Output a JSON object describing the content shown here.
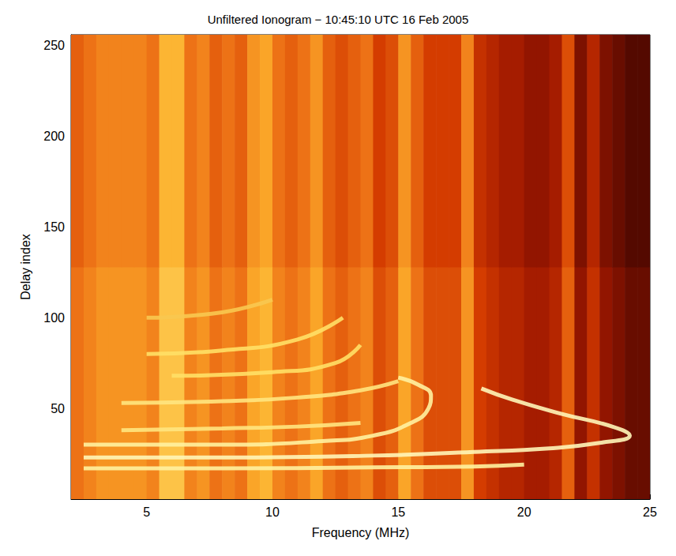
{
  "chart_data": {
    "type": "heatmap",
    "title": "Unfiltered Ionogram − 10:45:10 UTC 16 Feb 2005",
    "x_label": "Frequency (MHz)",
    "y_label": "Delay index",
    "xlim": [
      2,
      25
    ],
    "xticks": [
      5,
      10,
      15,
      20,
      25
    ],
    "ylim": [
      0,
      256
    ],
    "yticks": [
      50,
      100,
      150,
      200,
      250
    ],
    "grid": false,
    "cells": {
      "x_edges": [
        2,
        2.5,
        3,
        3.5,
        4,
        4.5,
        5,
        5.5,
        6,
        6.5,
        7,
        7.5,
        8,
        8.5,
        9,
        9.5,
        10,
        10.5,
        11,
        11.5,
        12,
        12.5,
        13,
        13.5,
        14,
        14.5,
        15,
        15.5,
        16,
        16.5,
        17,
        17.5,
        18,
        18.5,
        19,
        19.5,
        20,
        20.5,
        21,
        21.5,
        22,
        22.5,
        23,
        23.5,
        24,
        24.5,
        25
      ],
      "y_edges": [
        0,
        128,
        256
      ],
      "values": [
        [
          6.5,
          7,
          7.5,
          7.5,
          7.5,
          7.5,
          7,
          9,
          9,
          7,
          7.5,
          6.5,
          7,
          6.5,
          8,
          8.5,
          7,
          6.5,
          7,
          8,
          6.5,
          6,
          6.5,
          7,
          5.5,
          6,
          8,
          6.5,
          5.5,
          5.5,
          5.5,
          7.5,
          5,
          4.5,
          4,
          4,
          3.5,
          3.5,
          4,
          6,
          3,
          4.5,
          3,
          2.5,
          2,
          2
        ],
        [
          6,
          6.5,
          7,
          7,
          7,
          7,
          6.5,
          8.5,
          8.5,
          6.5,
          7,
          6,
          6.5,
          6,
          7.5,
          8,
          6.5,
          6,
          6.5,
          7.5,
          6,
          5.5,
          6,
          6.5,
          5,
          5.5,
          7.5,
          6,
          5,
          5,
          5,
          7,
          4.5,
          4,
          3.5,
          3.5,
          3,
          3,
          3.5,
          5.5,
          2.5,
          4,
          2.5,
          2,
          1.5,
          1.5
        ]
      ],
      "zlim": [
        0,
        10
      ]
    },
    "traces": [
      {
        "type": "line",
        "color": "#fff2a0",
        "points": [
          [
            2.5,
            17
          ],
          [
            8,
            17
          ],
          [
            14,
            17.5
          ],
          [
            18,
            18
          ],
          [
            20,
            19
          ]
        ]
      },
      {
        "type": "line",
        "color": "#fff6b8",
        "points": [
          [
            2.5,
            23
          ],
          [
            8,
            23
          ],
          [
            14,
            24
          ],
          [
            18,
            26
          ],
          [
            21,
            28
          ],
          [
            23,
            31
          ],
          [
            24.2,
            35
          ],
          [
            23.5,
            40
          ],
          [
            21.5,
            47
          ],
          [
            19.5,
            55
          ],
          [
            18.3,
            61
          ]
        ]
      },
      {
        "type": "line",
        "color": "#fff2a0",
        "points": [
          [
            2.5,
            30
          ],
          [
            8,
            30
          ],
          [
            12,
            32
          ],
          [
            14,
            35
          ],
          [
            15.5,
            42
          ],
          [
            16.2,
            50
          ],
          [
            16.3,
            57
          ],
          [
            15.8,
            63
          ],
          [
            15,
            67
          ]
        ]
      },
      {
        "type": "line",
        "color": "#ffe680",
        "points": [
          [
            4,
            38
          ],
          [
            8,
            39
          ],
          [
            11,
            40
          ],
          [
            13.5,
            42
          ]
        ]
      },
      {
        "type": "line",
        "color": "#ffe680",
        "points": [
          [
            4,
            53
          ],
          [
            8,
            54
          ],
          [
            11,
            56
          ],
          [
            13.5,
            60
          ],
          [
            15,
            65
          ]
        ]
      },
      {
        "type": "line",
        "color": "#ffe066",
        "points": [
          [
            6,
            68
          ],
          [
            10,
            70
          ],
          [
            12.5,
            75
          ],
          [
            13.5,
            85
          ]
        ]
      },
      {
        "type": "line",
        "color": "#ffe066",
        "points": [
          [
            5,
            80
          ],
          [
            8,
            82
          ],
          [
            11,
            88
          ],
          [
            12.8,
            100
          ]
        ]
      },
      {
        "type": "line",
        "color": "#f8c850",
        "points": [
          [
            5,
            100
          ],
          [
            8,
            103
          ],
          [
            10,
            110
          ]
        ]
      }
    ]
  }
}
